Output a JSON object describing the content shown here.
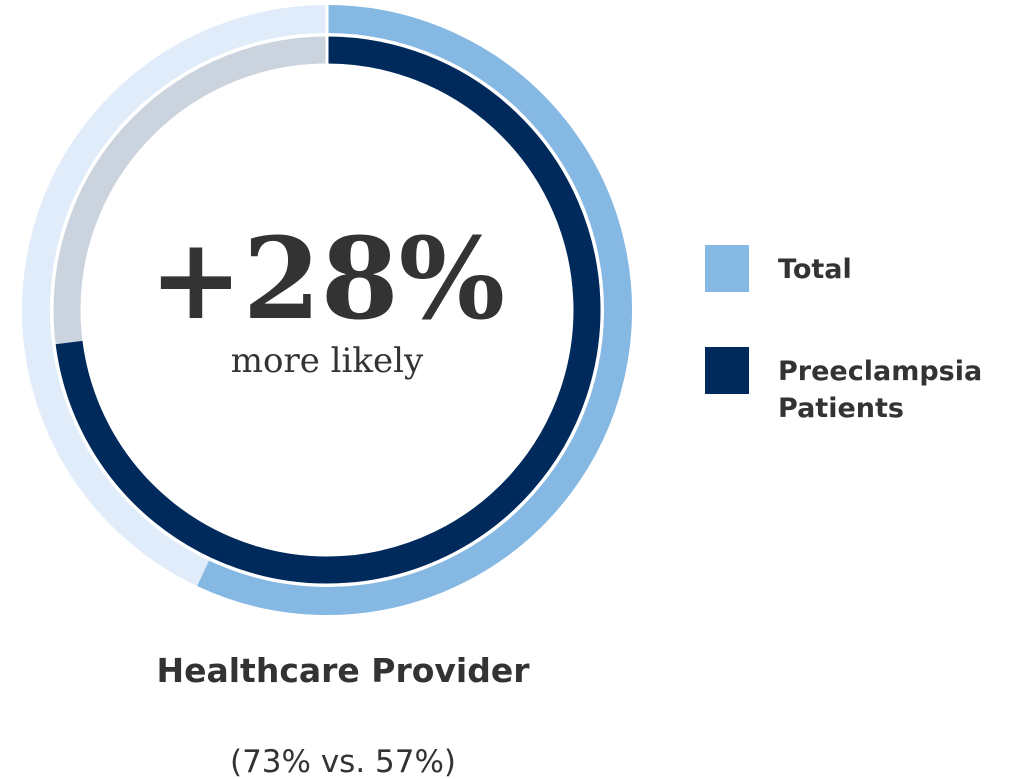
{
  "chart_data": {
    "type": "donut",
    "title": "Healthcare Provider",
    "subtitle": "(73% vs. 57%)",
    "center_value": "+28%",
    "center_label": "more likely",
    "ylim": [
      0,
      100
    ],
    "legend": "right",
    "series": [
      {
        "name": "Total",
        "color": "#85b8e3",
        "values": [
          57
        ]
      },
      {
        "name": "Preeclampsia Patients",
        "color": "#002a5c",
        "values": [
          73
        ]
      }
    ]
  }
}
